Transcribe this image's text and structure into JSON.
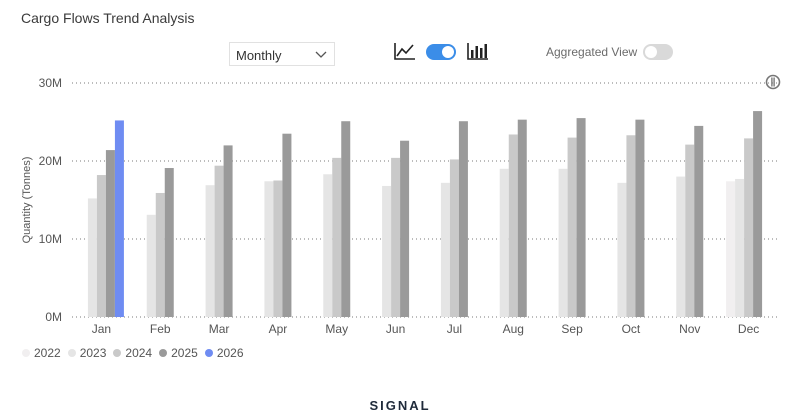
{
  "title": "Cargo Flows Trend Analysis",
  "period_select": {
    "value": "Monthly"
  },
  "view_toggle": {
    "on": true,
    "accent": "#3b8de8"
  },
  "aggregated_view": {
    "label": "Aggregated View",
    "on": false
  },
  "brand": "SIGNAL",
  "chart_data": {
    "type": "bar",
    "ylabel": "Quantity (Tonnes)",
    "xlabel": "",
    "ylim": [
      0,
      30000000
    ],
    "yticks": [
      "0M",
      "10M",
      "20M",
      "30M"
    ],
    "grid": true,
    "legend_position": "bottom-left",
    "categories": [
      "Jan",
      "Feb",
      "Mar",
      "Apr",
      "May",
      "Jun",
      "Jul",
      "Aug",
      "Sep",
      "Oct",
      "Nov",
      "Dec"
    ],
    "series": [
      {
        "name": "2022",
        "color": "#f1eff0",
        "values": [
          null,
          null,
          null,
          null,
          null,
          null,
          null,
          null,
          null,
          null,
          null,
          17400000
        ]
      },
      {
        "name": "2023",
        "color": "#e5e5e5",
        "values": [
          15200000,
          13100000,
          16900000,
          17400000,
          18300000,
          16800000,
          17200000,
          19000000,
          19000000,
          17200000,
          18000000,
          17700000
        ]
      },
      {
        "name": "2024",
        "color": "#c9c9c9",
        "values": [
          18200000,
          15900000,
          19400000,
          17500000,
          20400000,
          20400000,
          20200000,
          23400000,
          23000000,
          23300000,
          22100000,
          22900000
        ]
      },
      {
        "name": "2025",
        "color": "#9a9a9a",
        "values": [
          21400000,
          19100000,
          22000000,
          23500000,
          25100000,
          22600000,
          25100000,
          25300000,
          25500000,
          25300000,
          24500000,
          26400000
        ]
      },
      {
        "name": "2026",
        "color": "#6f8cf2",
        "values": [
          25200000,
          null,
          null,
          null,
          null,
          null,
          null,
          null,
          null,
          null,
          null,
          null
        ]
      }
    ]
  }
}
